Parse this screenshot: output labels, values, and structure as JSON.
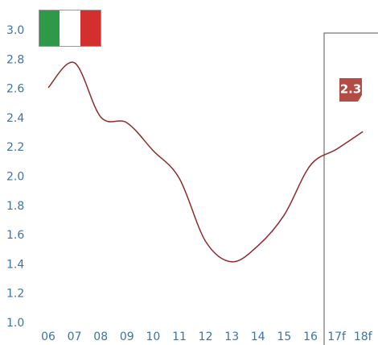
{
  "chart_data": {
    "type": "line",
    "categories": [
      "06",
      "07",
      "08",
      "09",
      "10",
      "11",
      "12",
      "13",
      "14",
      "15",
      "16",
      "17f",
      "18f"
    ],
    "series": [
      {
        "name": null,
        "color": "#8e2b2b",
        "values": [
          2.61,
          2.78,
          2.41,
          2.37,
          2.18,
          1.99,
          1.56,
          1.42,
          1.53,
          1.74,
          2.08,
          2.19,
          2.31
        ]
      }
    ],
    "ylim": [
      1.0,
      3.0
    ],
    "yticks": [
      {
        "value": 1.0,
        "label": "1.0"
      },
      1.2,
      1.4,
      1.6,
      1.8,
      {
        "value": 2.0,
        "label": "2.0"
      },
      2.2,
      2.4,
      2.6,
      2.8,
      {
        "value": 3.0,
        "label": "3.0"
      }
    ],
    "annotation": "2.3",
    "grid": false
  }
}
